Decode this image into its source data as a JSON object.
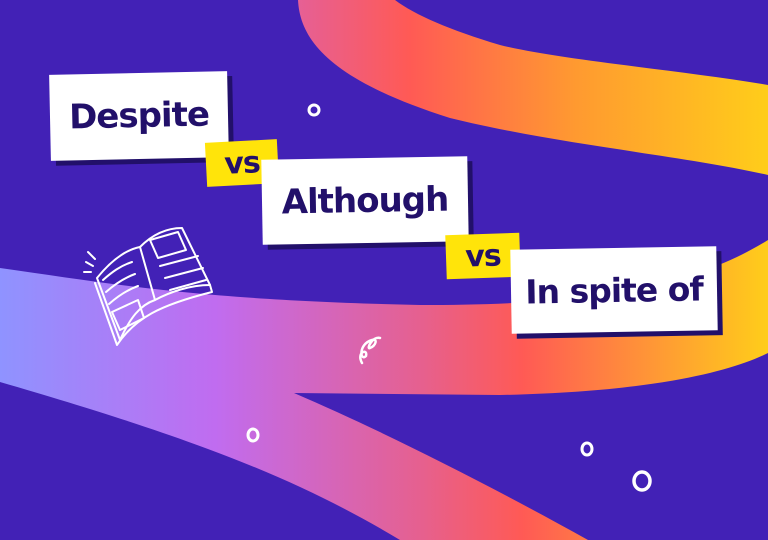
{
  "cards": {
    "word1": "Despite",
    "separator1": "vs",
    "word2": "Although",
    "separator2": "vs",
    "word3": "In spite of"
  },
  "colors": {
    "background": "#4221b6",
    "card": "#ffffff",
    "card_text": "#22106a",
    "separator": "#ffe40a",
    "ribbon_gradient": [
      "#8f93ff",
      "#c06cf0",
      "#ff5a5a",
      "#ffcd1a"
    ]
  },
  "decorations": [
    "open-book-icon",
    "squiggle-icon",
    "circle-icon"
  ]
}
